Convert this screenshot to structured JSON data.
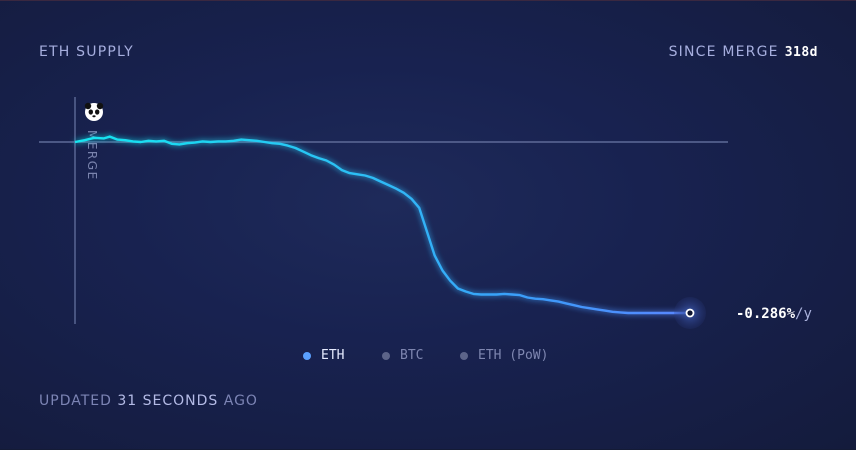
{
  "header": {
    "title": "ETH SUPPLY",
    "since_label": "SINCE MERGE",
    "since_value": "318d"
  },
  "footer": {
    "updated_prefix": "UPDATED",
    "updated_value": "31 SECONDS",
    "updated_suffix": "AGO"
  },
  "chart_data": {
    "type": "line",
    "marker_label": "MERGE",
    "marker_icon": "panda-icon",
    "end_label_value": "-0.286%",
    "end_label_unit": "/y",
    "xlabel": "",
    "ylabel": "",
    "xlim": [
      0,
      318
    ],
    "ylim": [
      -0.4,
      0.02
    ],
    "grid": false,
    "legend_position": "bottom-center",
    "series": [
      {
        "name": "ETH",
        "color": "#5aa0ff",
        "x": [
          0,
          5,
          10,
          15,
          18,
          22,
          26,
          30,
          34,
          38,
          42,
          46,
          50,
          54,
          58,
          62,
          66,
          70,
          74,
          78,
          82,
          86,
          90,
          94,
          98,
          102,
          106,
          110,
          114,
          118,
          122,
          126,
          130,
          134,
          138,
          142,
          146,
          150,
          154,
          158,
          162,
          166,
          170,
          174,
          178,
          182,
          186,
          190,
          194,
          198,
          202,
          206,
          210,
          214,
          218,
          222,
          226,
          230,
          234,
          238,
          242,
          246,
          250,
          254,
          258,
          262,
          266,
          270,
          274,
          278,
          282,
          286,
          290,
          294,
          298,
          302,
          306,
          310,
          314,
          318
        ],
        "values": [
          0.0,
          0.003,
          0.007,
          0.006,
          0.009,
          0.004,
          0.003,
          0.001,
          0.0,
          0.002,
          0.001,
          0.002,
          -0.003,
          -0.004,
          -0.002,
          -0.001,
          0.001,
          0.0,
          0.001,
          0.001,
          0.002,
          0.004,
          0.003,
          0.002,
          0.0,
          -0.002,
          -0.003,
          -0.006,
          -0.01,
          -0.016,
          -0.022,
          -0.027,
          -0.031,
          -0.038,
          -0.047,
          -0.052,
          -0.054,
          -0.056,
          -0.06,
          -0.066,
          -0.072,
          -0.078,
          -0.085,
          -0.095,
          -0.11,
          -0.15,
          -0.19,
          -0.215,
          -0.232,
          -0.245,
          -0.25,
          -0.254,
          -0.255,
          -0.255,
          -0.255,
          -0.254,
          -0.255,
          -0.256,
          -0.26,
          -0.262,
          -0.263,
          -0.265,
          -0.267,
          -0.27,
          -0.273,
          -0.276,
          -0.278,
          -0.28,
          -0.282,
          -0.284,
          -0.285,
          -0.286,
          -0.286,
          -0.286,
          -0.286,
          -0.286,
          -0.286,
          -0.286,
          -0.286,
          -0.286
        ]
      }
    ]
  },
  "legend": [
    {
      "label": "ETH",
      "color": "#5aa0ff",
      "active": true
    },
    {
      "label": "BTC",
      "color": "#5c6489",
      "active": false
    },
    {
      "label": "ETH (PoW)",
      "color": "#5c6489",
      "active": false
    }
  ]
}
